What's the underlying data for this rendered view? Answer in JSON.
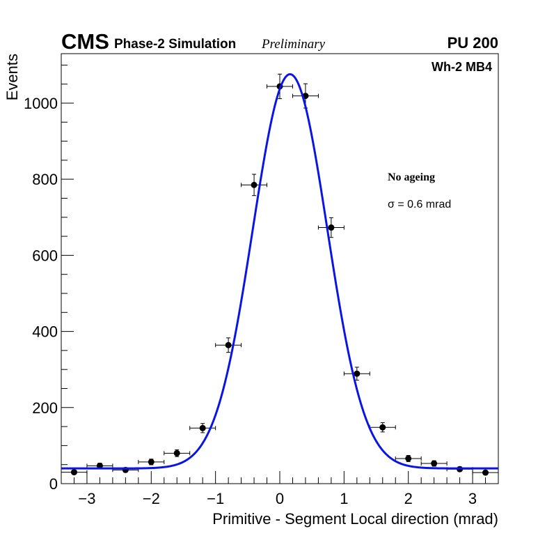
{
  "header": {
    "experiment": "CMS",
    "simulation": "Phase-2 Simulation",
    "status": "Preliminary",
    "pileup": "PU 200"
  },
  "annotations": {
    "region": "Wh-2 MB4",
    "ageing": "No ageing",
    "sigma": "σ = 0.6 mrad"
  },
  "colors": {
    "fit": "#0a14e6",
    "points": "#000000"
  },
  "chart_data": {
    "type": "scatter",
    "title": "",
    "xlabel": "Primitive - Segment Local direction (mrad)",
    "ylabel": "Events",
    "xlim": [
      -3.4,
      3.4
    ],
    "ylim": [
      0,
      1130
    ],
    "x_ticks": [
      -3,
      -2,
      -1,
      0,
      1,
      2,
      3
    ],
    "x_tick_labels": [
      "−3",
      "−2",
      "−1",
      "0",
      "1",
      "2",
      "3"
    ],
    "y_ticks": [
      0,
      200,
      400,
      600,
      800,
      1000
    ],
    "y_tick_labels": [
      "0",
      "200",
      "400",
      "600",
      "800",
      "1000"
    ],
    "series": [
      {
        "name": "Simulation",
        "x": [
          -3.2,
          -2.8,
          -2.4,
          -2.0,
          -1.6,
          -1.2,
          -0.8,
          -0.4,
          0.0,
          0.4,
          0.8,
          1.2,
          1.6,
          2.0,
          2.4,
          2.8,
          3.2
        ],
        "y": [
          30,
          47,
          36,
          57,
          80,
          146,
          364,
          785,
          1044,
          1019,
          673,
          289,
          148,
          66,
          53,
          38,
          29
        ],
        "x_err": 0.2
      }
    ],
    "fit": {
      "name": "Gaussian fit",
      "function": "gaussian+constant",
      "constant": 40,
      "amplitude": 1036,
      "mean": 0.16,
      "sigma": 0.58
    }
  }
}
